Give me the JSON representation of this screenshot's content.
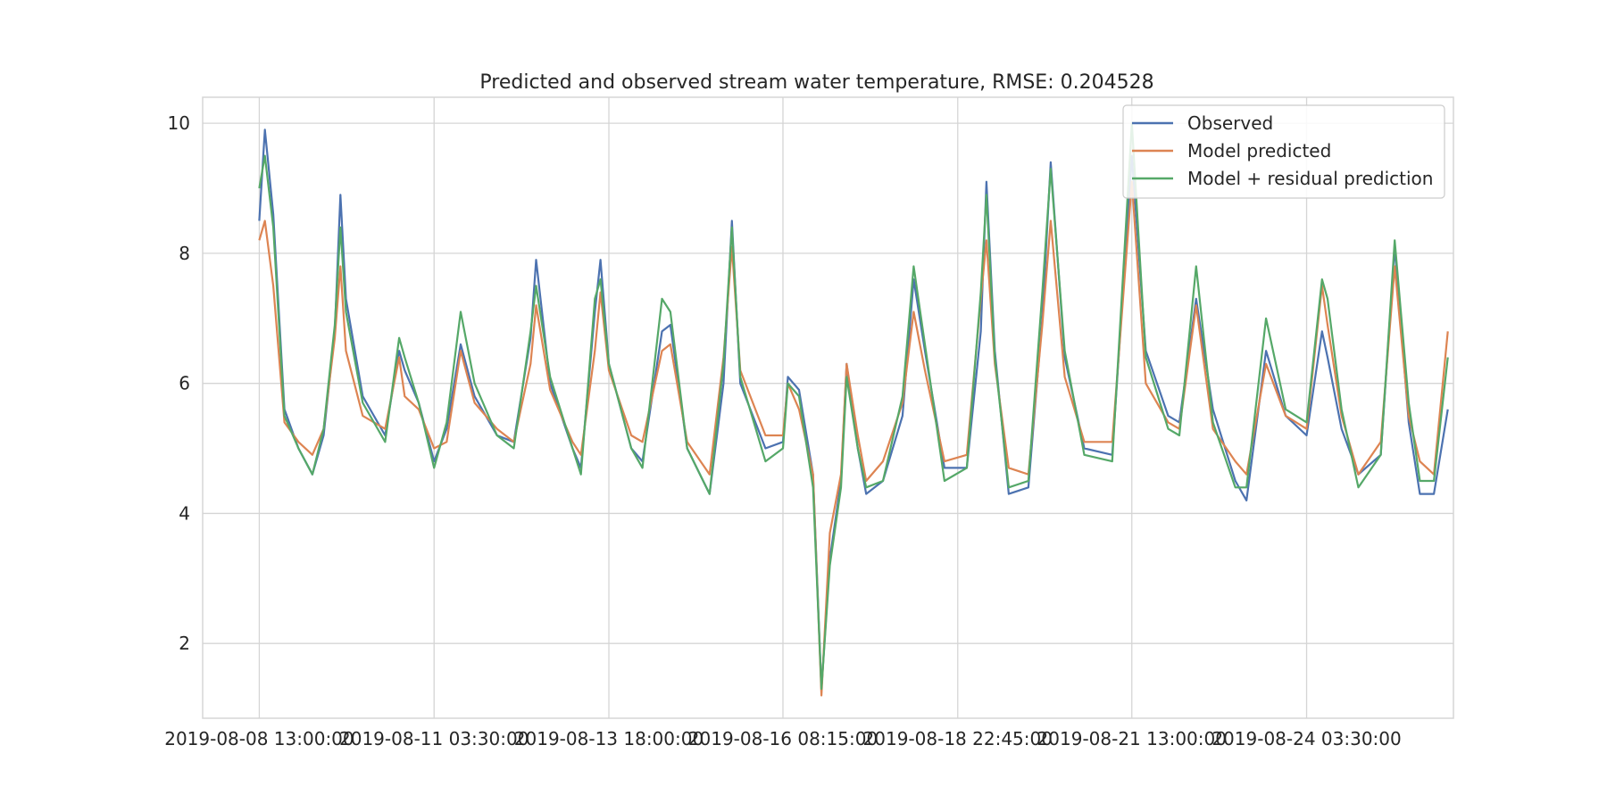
{
  "chart_data": {
    "type": "line",
    "title": "Predicted and observed stream water temperature, RMSE: 0.204528",
    "xlabel": "",
    "ylabel": "",
    "ylim": [
      0.85,
      10.4
    ],
    "xlim": [
      "2019-08-07 16:45",
      "2019-08-26 08:00"
    ],
    "x_ticks": [
      "2019-08-08 13:00:00",
      "2019-08-11 03:30:00",
      "2019-08-13 18:00:00",
      "2019-08-16 08:15:00",
      "2019-08-18 22:45:00",
      "2019-08-21 13:00:00",
      "2019-08-24 03:30:00"
    ],
    "y_ticks": [
      2,
      4,
      6,
      8,
      10
    ],
    "grid": true,
    "legend_position": "top-right",
    "colors": {
      "observed": "#4c72b0",
      "model": "#dd8452",
      "residual": "#55a868",
      "grid": "#d5d5d5"
    },
    "series": [
      {
        "name": "Observed",
        "points": [
          [
            "2019-08-08 13:00",
            8.5
          ],
          [
            "2019-08-08 15:00",
            9.9
          ],
          [
            "2019-08-08 18:00",
            8.6
          ],
          [
            "2019-08-08 22:00",
            5.6
          ],
          [
            "2019-08-09 03:00",
            5.0
          ],
          [
            "2019-08-09 08:00",
            4.6
          ],
          [
            "2019-08-09 12:00",
            5.2
          ],
          [
            "2019-08-09 16:00",
            6.8
          ],
          [
            "2019-08-09 18:00",
            8.9
          ],
          [
            "2019-08-09 20:00",
            7.3
          ],
          [
            "2019-08-10 02:00",
            5.8
          ],
          [
            "2019-08-10 10:00",
            5.2
          ],
          [
            "2019-08-10 15:00",
            6.5
          ],
          [
            "2019-08-10 17:00",
            6.2
          ],
          [
            "2019-08-10 22:00",
            5.7
          ],
          [
            "2019-08-11 03:30",
            4.8
          ],
          [
            "2019-08-11 08:00",
            5.3
          ],
          [
            "2019-08-11 13:00",
            6.6
          ],
          [
            "2019-08-11 18:00",
            5.8
          ],
          [
            "2019-08-12 02:00",
            5.2
          ],
          [
            "2019-08-12 08:00",
            5.1
          ],
          [
            "2019-08-12 14:00",
            6.7
          ],
          [
            "2019-08-12 16:00",
            7.9
          ],
          [
            "2019-08-12 21:00",
            6.0
          ],
          [
            "2019-08-13 05:00",
            5.0
          ],
          [
            "2019-08-13 08:00",
            4.7
          ],
          [
            "2019-08-13 13:00",
            7.1
          ],
          [
            "2019-08-13 15:00",
            7.9
          ],
          [
            "2019-08-13 18:00",
            6.3
          ],
          [
            "2019-08-14 02:00",
            5.0
          ],
          [
            "2019-08-14 06:00",
            4.8
          ],
          [
            "2019-08-14 13:00",
            6.8
          ],
          [
            "2019-08-14 16:00",
            6.9
          ],
          [
            "2019-08-14 22:00",
            5.0
          ],
          [
            "2019-08-15 06:00",
            4.3
          ],
          [
            "2019-08-15 11:00",
            6.0
          ],
          [
            "2019-08-15 14:00",
            8.5
          ],
          [
            "2019-08-15 17:00",
            6.0
          ],
          [
            "2019-08-16 02:00",
            5.0
          ],
          [
            "2019-08-16 08:15",
            5.1
          ],
          [
            "2019-08-16 10:00",
            6.1
          ],
          [
            "2019-08-16 14:00",
            5.9
          ],
          [
            "2019-08-16 19:00",
            4.6
          ],
          [
            "2019-08-16 22:00",
            1.3
          ],
          [
            "2019-08-17 01:00",
            3.3
          ],
          [
            "2019-08-17 05:00",
            4.5
          ],
          [
            "2019-08-17 07:00",
            6.3
          ],
          [
            "2019-08-17 11:00",
            5.0
          ],
          [
            "2019-08-17 14:00",
            4.3
          ],
          [
            "2019-08-17 20:00",
            4.5
          ],
          [
            "2019-08-18 03:00",
            5.5
          ],
          [
            "2019-08-18 07:00",
            7.6
          ],
          [
            "2019-08-18 11:00",
            6.5
          ],
          [
            "2019-08-18 18:00",
            4.7
          ],
          [
            "2019-08-19 02:00",
            4.7
          ],
          [
            "2019-08-19 07:00",
            6.8
          ],
          [
            "2019-08-19 09:00",
            9.1
          ],
          [
            "2019-08-19 12:00",
            6.5
          ],
          [
            "2019-08-19 17:00",
            4.3
          ],
          [
            "2019-08-20 00:00",
            4.4
          ],
          [
            "2019-08-20 05:00",
            7.0
          ],
          [
            "2019-08-20 08:00",
            9.4
          ],
          [
            "2019-08-20 13:00",
            6.4
          ],
          [
            "2019-08-20 20:00",
            5.0
          ],
          [
            "2019-08-21 06:00",
            4.9
          ],
          [
            "2019-08-21 13:00",
            9.5
          ],
          [
            "2019-08-21 18:00",
            6.5
          ],
          [
            "2019-08-22 02:00",
            5.5
          ],
          [
            "2019-08-22 06:00",
            5.4
          ],
          [
            "2019-08-22 12:00",
            7.3
          ],
          [
            "2019-08-22 18:00",
            5.6
          ],
          [
            "2019-08-23 02:00",
            4.5
          ],
          [
            "2019-08-23 06:00",
            4.2
          ],
          [
            "2019-08-23 13:00",
            6.5
          ],
          [
            "2019-08-23 20:00",
            5.5
          ],
          [
            "2019-08-24 03:30",
            5.2
          ],
          [
            "2019-08-24 09:00",
            6.8
          ],
          [
            "2019-08-24 11:00",
            6.4
          ],
          [
            "2019-08-24 16:00",
            5.3
          ],
          [
            "2019-08-24 22:00",
            4.6
          ],
          [
            "2019-08-25 06:00",
            4.9
          ],
          [
            "2019-08-25 11:00",
            8.1
          ],
          [
            "2019-08-25 16:00",
            5.4
          ],
          [
            "2019-08-25 20:00",
            4.3
          ],
          [
            "2019-08-26 01:00",
            4.3
          ],
          [
            "2019-08-26 06:00",
            5.6
          ]
        ]
      },
      {
        "name": "Model predicted",
        "points": [
          [
            "2019-08-08 13:00",
            8.2
          ],
          [
            "2019-08-08 15:00",
            8.5
          ],
          [
            "2019-08-08 18:00",
            7.5
          ],
          [
            "2019-08-08 22:00",
            5.4
          ],
          [
            "2019-08-09 03:00",
            5.1
          ],
          [
            "2019-08-09 08:00",
            4.9
          ],
          [
            "2019-08-09 12:00",
            5.3
          ],
          [
            "2019-08-09 16:00",
            6.7
          ],
          [
            "2019-08-09 18:00",
            7.8
          ],
          [
            "2019-08-09 20:00",
            6.5
          ],
          [
            "2019-08-10 02:00",
            5.5
          ],
          [
            "2019-08-10 10:00",
            5.3
          ],
          [
            "2019-08-10 15:00",
            6.4
          ],
          [
            "2019-08-10 17:00",
            5.8
          ],
          [
            "2019-08-10 22:00",
            5.6
          ],
          [
            "2019-08-11 03:30",
            5.0
          ],
          [
            "2019-08-11 08:00",
            5.1
          ],
          [
            "2019-08-11 13:00",
            6.5
          ],
          [
            "2019-08-11 18:00",
            5.7
          ],
          [
            "2019-08-12 02:00",
            5.3
          ],
          [
            "2019-08-12 08:00",
            5.1
          ],
          [
            "2019-08-12 14:00",
            6.3
          ],
          [
            "2019-08-12 16:00",
            7.2
          ],
          [
            "2019-08-12 21:00",
            5.9
          ],
          [
            "2019-08-13 05:00",
            5.1
          ],
          [
            "2019-08-13 08:00",
            4.9
          ],
          [
            "2019-08-13 13:00",
            6.5
          ],
          [
            "2019-08-13 15:00",
            7.4
          ],
          [
            "2019-08-13 18:00",
            6.2
          ],
          [
            "2019-08-14 02:00",
            5.2
          ],
          [
            "2019-08-14 06:00",
            5.1
          ],
          [
            "2019-08-14 13:00",
            6.5
          ],
          [
            "2019-08-14 16:00",
            6.6
          ],
          [
            "2019-08-14 22:00",
            5.1
          ],
          [
            "2019-08-15 06:00",
            4.6
          ],
          [
            "2019-08-15 11:00",
            6.4
          ],
          [
            "2019-08-15 14:00",
            8.1
          ],
          [
            "2019-08-15 17:00",
            6.2
          ],
          [
            "2019-08-16 02:00",
            5.2
          ],
          [
            "2019-08-16 08:15",
            5.2
          ],
          [
            "2019-08-16 10:00",
            6.0
          ],
          [
            "2019-08-16 14:00",
            5.6
          ],
          [
            "2019-08-16 19:00",
            4.6
          ],
          [
            "2019-08-16 22:00",
            1.2
          ],
          [
            "2019-08-17 01:00",
            3.7
          ],
          [
            "2019-08-17 05:00",
            4.6
          ],
          [
            "2019-08-17 07:00",
            6.3
          ],
          [
            "2019-08-17 11:00",
            5.2
          ],
          [
            "2019-08-17 14:00",
            4.5
          ],
          [
            "2019-08-17 20:00",
            4.8
          ],
          [
            "2019-08-18 03:00",
            5.7
          ],
          [
            "2019-08-18 07:00",
            7.1
          ],
          [
            "2019-08-18 11:00",
            6.2
          ],
          [
            "2019-08-18 18:00",
            4.8
          ],
          [
            "2019-08-19 02:00",
            4.9
          ],
          [
            "2019-08-19 07:00",
            7.3
          ],
          [
            "2019-08-19 09:00",
            8.2
          ],
          [
            "2019-08-19 12:00",
            6.3
          ],
          [
            "2019-08-19 17:00",
            4.7
          ],
          [
            "2019-08-20 00:00",
            4.6
          ],
          [
            "2019-08-20 05:00",
            6.9
          ],
          [
            "2019-08-20 08:00",
            8.5
          ],
          [
            "2019-08-20 13:00",
            6.1
          ],
          [
            "2019-08-20 20:00",
            5.1
          ],
          [
            "2019-08-21 06:00",
            5.1
          ],
          [
            "2019-08-21 13:00",
            9.1
          ],
          [
            "2019-08-21 18:00",
            6.0
          ],
          [
            "2019-08-22 02:00",
            5.4
          ],
          [
            "2019-08-22 06:00",
            5.3
          ],
          [
            "2019-08-22 12:00",
            7.2
          ],
          [
            "2019-08-22 18:00",
            5.3
          ],
          [
            "2019-08-23 02:00",
            4.8
          ],
          [
            "2019-08-23 06:00",
            4.6
          ],
          [
            "2019-08-23 13:00",
            6.3
          ],
          [
            "2019-08-23 20:00",
            5.5
          ],
          [
            "2019-08-24 03:30",
            5.3
          ],
          [
            "2019-08-24 09:00",
            7.5
          ],
          [
            "2019-08-24 11:00",
            6.9
          ],
          [
            "2019-08-24 16:00",
            5.5
          ],
          [
            "2019-08-24 22:00",
            4.6
          ],
          [
            "2019-08-25 06:00",
            5.1
          ],
          [
            "2019-08-25 11:00",
            7.8
          ],
          [
            "2019-08-25 16:00",
            5.5
          ],
          [
            "2019-08-25 20:00",
            4.8
          ],
          [
            "2019-08-26 01:00",
            4.6
          ],
          [
            "2019-08-26 06:00",
            6.8
          ]
        ]
      },
      {
        "name": "Model + residual prediction",
        "points": [
          [
            "2019-08-08 13:00",
            9.0
          ],
          [
            "2019-08-08 15:00",
            9.5
          ],
          [
            "2019-08-08 18:00",
            8.4
          ],
          [
            "2019-08-08 22:00",
            5.5
          ],
          [
            "2019-08-09 03:00",
            5.0
          ],
          [
            "2019-08-09 08:00",
            4.6
          ],
          [
            "2019-08-09 12:00",
            5.3
          ],
          [
            "2019-08-09 16:00",
            6.9
          ],
          [
            "2019-08-09 18:00",
            8.4
          ],
          [
            "2019-08-09 20:00",
            7.1
          ],
          [
            "2019-08-10 02:00",
            5.7
          ],
          [
            "2019-08-10 10:00",
            5.1
          ],
          [
            "2019-08-10 15:00",
            6.7
          ],
          [
            "2019-08-10 17:00",
            6.4
          ],
          [
            "2019-08-10 22:00",
            5.7
          ],
          [
            "2019-08-11 03:30",
            4.7
          ],
          [
            "2019-08-11 08:00",
            5.4
          ],
          [
            "2019-08-11 13:00",
            7.1
          ],
          [
            "2019-08-11 18:00",
            6.0
          ],
          [
            "2019-08-12 02:00",
            5.2
          ],
          [
            "2019-08-12 08:00",
            5.0
          ],
          [
            "2019-08-12 14:00",
            6.8
          ],
          [
            "2019-08-12 16:00",
            7.5
          ],
          [
            "2019-08-12 21:00",
            6.1
          ],
          [
            "2019-08-13 05:00",
            5.0
          ],
          [
            "2019-08-13 08:00",
            4.6
          ],
          [
            "2019-08-13 13:00",
            7.3
          ],
          [
            "2019-08-13 15:00",
            7.6
          ],
          [
            "2019-08-13 18:00",
            6.3
          ],
          [
            "2019-08-14 02:00",
            5.0
          ],
          [
            "2019-08-14 06:00",
            4.7
          ],
          [
            "2019-08-14 13:00",
            7.3
          ],
          [
            "2019-08-14 16:00",
            7.1
          ],
          [
            "2019-08-14 22:00",
            5.0
          ],
          [
            "2019-08-15 06:00",
            4.3
          ],
          [
            "2019-08-15 11:00",
            6.3
          ],
          [
            "2019-08-15 14:00",
            8.4
          ],
          [
            "2019-08-15 17:00",
            6.1
          ],
          [
            "2019-08-16 02:00",
            4.8
          ],
          [
            "2019-08-16 08:15",
            5.0
          ],
          [
            "2019-08-16 10:00",
            6.0
          ],
          [
            "2019-08-16 14:00",
            5.8
          ],
          [
            "2019-08-16 19:00",
            4.4
          ],
          [
            "2019-08-16 22:00",
            1.3
          ],
          [
            "2019-08-17 01:00",
            3.2
          ],
          [
            "2019-08-17 05:00",
            4.4
          ],
          [
            "2019-08-17 07:00",
            6.1
          ],
          [
            "2019-08-17 11:00",
            5.0
          ],
          [
            "2019-08-17 14:00",
            4.4
          ],
          [
            "2019-08-17 20:00",
            4.5
          ],
          [
            "2019-08-18 03:00",
            5.8
          ],
          [
            "2019-08-18 07:00",
            7.8
          ],
          [
            "2019-08-18 11:00",
            6.6
          ],
          [
            "2019-08-18 18:00",
            4.5
          ],
          [
            "2019-08-19 02:00",
            4.7
          ],
          [
            "2019-08-19 07:00",
            7.4
          ],
          [
            "2019-08-19 09:00",
            8.9
          ],
          [
            "2019-08-19 12:00",
            6.4
          ],
          [
            "2019-08-19 17:00",
            4.4
          ],
          [
            "2019-08-20 00:00",
            4.5
          ],
          [
            "2019-08-20 05:00",
            7.4
          ],
          [
            "2019-08-20 08:00",
            9.3
          ],
          [
            "2019-08-20 13:00",
            6.5
          ],
          [
            "2019-08-20 20:00",
            4.9
          ],
          [
            "2019-08-21 06:00",
            4.8
          ],
          [
            "2019-08-21 13:00",
            10.0
          ],
          [
            "2019-08-21 18:00",
            6.4
          ],
          [
            "2019-08-22 02:00",
            5.3
          ],
          [
            "2019-08-22 06:00",
            5.2
          ],
          [
            "2019-08-22 12:00",
            7.8
          ],
          [
            "2019-08-22 18:00",
            5.4
          ],
          [
            "2019-08-23 02:00",
            4.4
          ],
          [
            "2019-08-23 06:00",
            4.4
          ],
          [
            "2019-08-23 13:00",
            7.0
          ],
          [
            "2019-08-23 20:00",
            5.6
          ],
          [
            "2019-08-24 03:30",
            5.4
          ],
          [
            "2019-08-24 09:00",
            7.6
          ],
          [
            "2019-08-24 11:00",
            7.3
          ],
          [
            "2019-08-24 16:00",
            5.6
          ],
          [
            "2019-08-24 22:00",
            4.4
          ],
          [
            "2019-08-25 06:00",
            4.9
          ],
          [
            "2019-08-25 11:00",
            8.2
          ],
          [
            "2019-08-25 16:00",
            5.7
          ],
          [
            "2019-08-25 20:00",
            4.5
          ],
          [
            "2019-08-26 01:00",
            4.5
          ],
          [
            "2019-08-26 06:00",
            6.4
          ]
        ]
      }
    ]
  }
}
